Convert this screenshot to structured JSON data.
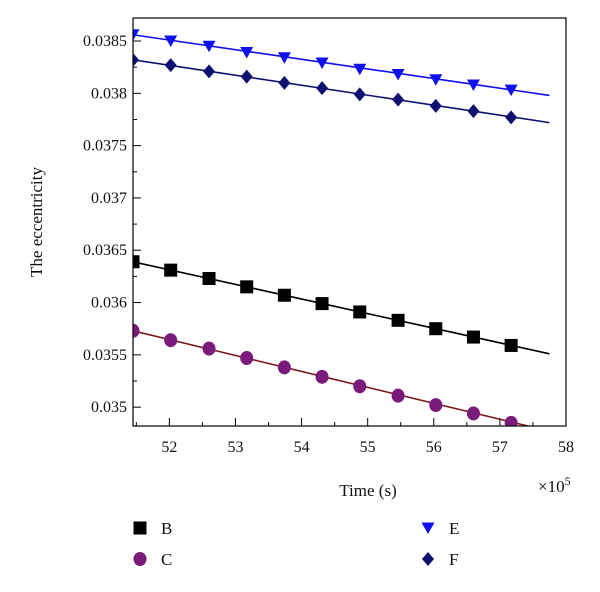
{
  "chart_data": {
    "type": "line",
    "xlabel": "Time (s)",
    "x_multiplier": "×10",
    "x_multiplier_exp": "5",
    "ylabel": "The eccentricity",
    "xlim": [
      51.45,
      58
    ],
    "ylim": [
      0.03482,
      0.03872
    ],
    "xticks": [
      52,
      53,
      54,
      55,
      56,
      57,
      58
    ],
    "yticks": [
      0.035,
      0.0355,
      0.036,
      0.0365,
      0.037,
      0.0375,
      0.038,
      0.0385
    ],
    "ytick_labels": [
      "0.035",
      "0.0355",
      "0.036",
      "0.0365",
      "0.037",
      "0.0375",
      "0.038",
      "0.0385"
    ],
    "legend": "bottom",
    "series": [
      {
        "name": "B",
        "marker": "square",
        "color": "#000000",
        "line_color": "#000000",
        "x": [
          51.45,
          52.02,
          52.6,
          53.17,
          53.74,
          54.31,
          54.88,
          55.46,
          56.03,
          56.6,
          57.17
        ],
        "y": [
          0.03639,
          0.03631,
          0.03623,
          0.03615,
          0.03607,
          0.03599,
          0.03591,
          0.03583,
          0.03575,
          0.03567,
          0.03559
        ],
        "fit": [
          [
            51.45,
            0.03639
          ],
          [
            57.75,
            0.03551
          ]
        ]
      },
      {
        "name": "C",
        "marker": "circle",
        "color": "#7a1a7a",
        "line_color": "#7a1a1a",
        "x": [
          51.45,
          52.02,
          52.6,
          53.17,
          53.74,
          54.31,
          54.88,
          55.46,
          56.03,
          56.6,
          57.17
        ],
        "y": [
          0.03573,
          0.03564,
          0.03556,
          0.03547,
          0.03538,
          0.03529,
          0.0352,
          0.03511,
          0.03502,
          0.03494,
          0.03485
        ],
        "fit": [
          [
            51.45,
            0.03573
          ],
          [
            57.75,
            0.03477
          ]
        ]
      },
      {
        "name": "E",
        "marker": "triangle-down",
        "color": "#1010ee",
        "line_color": "#1010ee",
        "x": [
          51.45,
          52.02,
          52.6,
          53.17,
          53.74,
          54.31,
          54.88,
          55.46,
          56.03,
          56.6,
          57.17
        ],
        "y": [
          0.03856,
          0.0385,
          0.03845,
          0.03839,
          0.03834,
          0.03829,
          0.03823,
          0.03818,
          0.03813,
          0.03808,
          0.03803
        ],
        "fit": [
          [
            51.45,
            0.03856
          ],
          [
            57.75,
            0.03798
          ]
        ]
      },
      {
        "name": "F",
        "marker": "diamond",
        "color": "#101070",
        "line_color": "#101070",
        "x": [
          51.45,
          52.02,
          52.6,
          53.17,
          53.74,
          54.31,
          54.88,
          55.46,
          56.03,
          56.6,
          57.17
        ],
        "y": [
          0.03832,
          0.03827,
          0.03821,
          0.03816,
          0.0381,
          0.03805,
          0.03799,
          0.03794,
          0.03788,
          0.03783,
          0.03777
        ],
        "fit": [
          [
            51.45,
            0.03832
          ],
          [
            57.75,
            0.03772
          ]
        ]
      }
    ]
  }
}
